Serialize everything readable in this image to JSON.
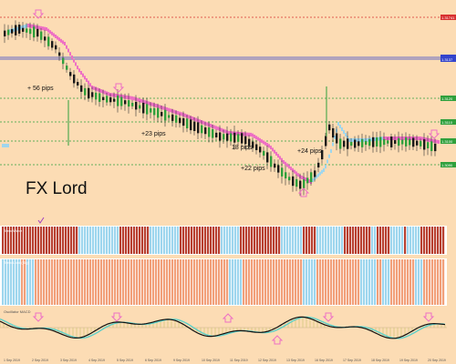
{
  "brand": {
    "title": "FX Lord"
  },
  "annotations": {
    "pips": [
      "+ 56 pips",
      "+23 pips",
      "18 pips",
      "+22 pips",
      "+24 pips"
    ]
  },
  "price_levels": [
    {
      "label": "1.31741",
      "color": "#d83030",
      "style": "dotted"
    },
    {
      "label": "1.3140",
      "color": "#3344cc",
      "style": "solid"
    },
    {
      "label": "1.3137",
      "color": "#3344cc",
      "style": "solid"
    },
    {
      "label": "1.3120",
      "color": "#2fa03c",
      "style": "dotted"
    },
    {
      "label": "1.3110",
      "color": "#2fa03c",
      "style": "dotted"
    },
    {
      "label": "1.3100",
      "color": "#2fa03c",
      "style": "dotted"
    },
    {
      "label": "1.3090",
      "color": "#2fa03c",
      "style": "dotted"
    }
  ],
  "panels": {
    "ind1_label": "TrendWave",
    "ind2_label": "TrendLord (Sig)",
    "osc_label": "Oscillator MACD"
  },
  "timeline": {
    "labels": [
      "1 Sep 2019",
      "2 Sep 2019",
      "3 Sep 2019",
      "4 Sep 2019",
      "5 Sep 2019",
      "6 Sep 2019",
      "9 Sep 2019",
      "10 Sep 2019",
      "11 Sep 2019",
      "12 Sep 2019",
      "13 Sep 2019",
      "16 Sep 2019",
      "17 Sep 2019",
      "18 Sep 2019",
      "19 Sep 2019",
      "20 Sep 2019"
    ]
  },
  "colors": {
    "background": "#fcdcb4",
    "bull_candle": "#2fa03c",
    "bear_candle": "#1a1a1a",
    "signal_pink": "#ee6fc4",
    "signal_blue": "#9ed6ee",
    "band_red": "#b84030",
    "band_blue": "#9ed6ee",
    "band_salmon": "#f2a07a",
    "macd_line": "#111111",
    "macd_signal": "#5fd0c8"
  },
  "icons": {
    "arrow_down": "pink-down-arrow-icon",
    "arrow_up": "pink-up-arrow-icon",
    "checkmark": "purple-check-icon"
  }
}
